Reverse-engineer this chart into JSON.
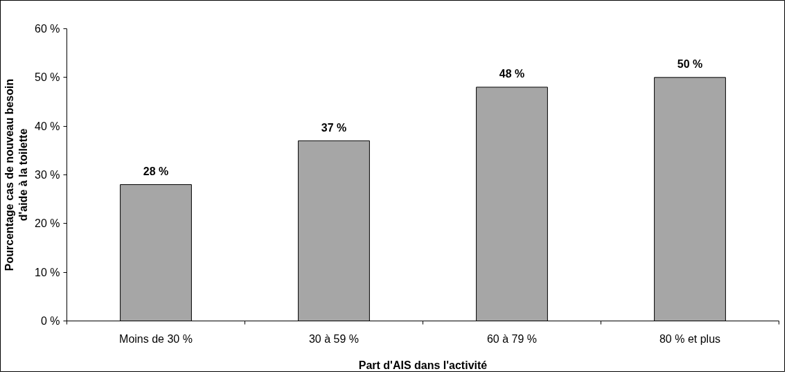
{
  "chart_data": {
    "type": "bar",
    "xlabel": "Part d'AIS dans l'activité",
    "ylabel": "Pourcentage cas de nouveau besoin\nd'aide à la toilette",
    "categories": [
      "Moins de 30 %",
      "30 à 59 %",
      "60 à 79 %",
      "80 % et plus"
    ],
    "values": [
      28,
      37,
      48,
      50
    ],
    "value_labels": [
      "28 %",
      "37 %",
      "48 %",
      "50 %"
    ],
    "color": "#a6a6a6",
    "ylim": [
      0,
      60
    ],
    "yticks": [
      {
        "value": 0,
        "label": "0 %"
      },
      {
        "value": 10,
        "label": "10 %"
      },
      {
        "value": 20,
        "label": "20 %"
      },
      {
        "value": 30,
        "label": "30 %"
      },
      {
        "value": 40,
        "label": "40 %"
      },
      {
        "value": 50,
        "label": "50 %"
      },
      {
        "value": 60,
        "label": "60 %"
      }
    ],
    "grid": false
  }
}
